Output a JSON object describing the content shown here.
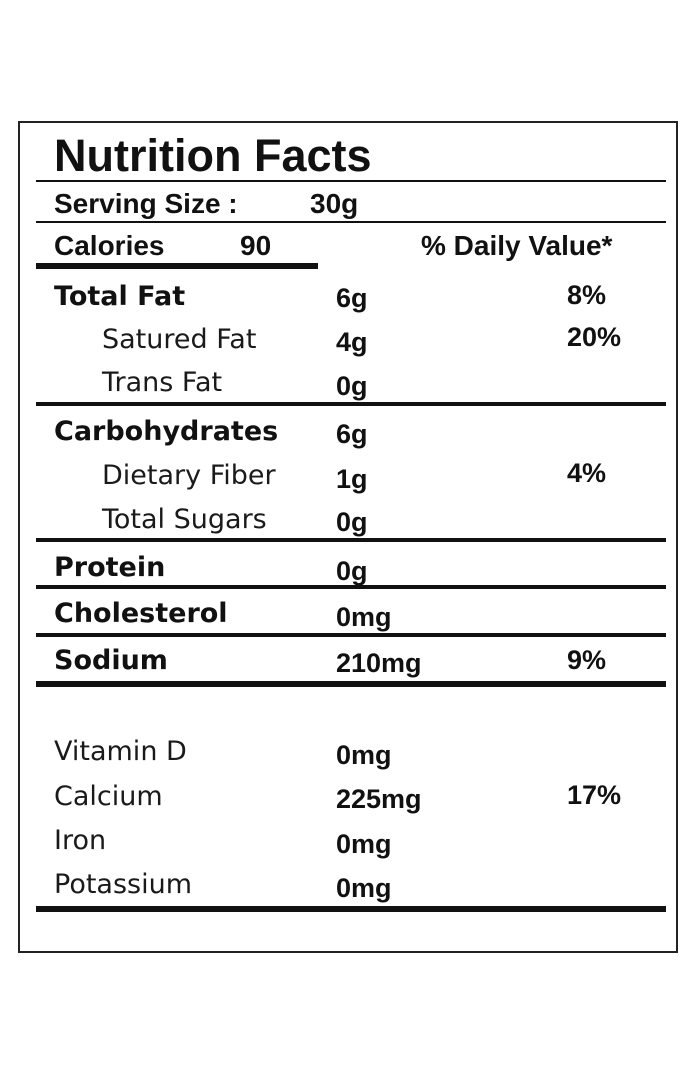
{
  "title": "Nutrition Facts",
  "serving": {
    "label": "Serving Size :",
    "value": "30g"
  },
  "calories": {
    "label": "Calories",
    "value": "90"
  },
  "daily_value_header": "% Daily Value*",
  "rows": {
    "total_fat": {
      "label": "Total Fat",
      "amount": "6g",
      "dv": "8%"
    },
    "saturated_fat": {
      "label": "Satured Fat",
      "amount": "4g",
      "dv": "20%"
    },
    "trans_fat": {
      "label": "Trans Fat",
      "amount": "0g"
    },
    "carbohydrates": {
      "label": "Carbohydrates",
      "amount": "6g"
    },
    "dietary_fiber": {
      "label": "Dietary Fiber",
      "amount": "1g",
      "dv": "4%"
    },
    "total_sugars": {
      "label": "Total Sugars",
      "amount": "0g"
    },
    "protein": {
      "label": "Protein",
      "amount": "0g"
    },
    "cholesterol": {
      "label": "Cholesterol",
      "amount": "0mg"
    },
    "sodium": {
      "label": "Sodium",
      "amount": "210mg",
      "dv": "9%"
    },
    "vitamin_d": {
      "label": "Vitamin D",
      "amount": "0mg"
    },
    "calcium": {
      "label": "Calcium",
      "amount": "225mg",
      "dv": "17%"
    },
    "iron": {
      "label": "Iron",
      "amount": "0mg"
    },
    "potassium": {
      "label": "Potassium",
      "amount": "0mg"
    }
  }
}
